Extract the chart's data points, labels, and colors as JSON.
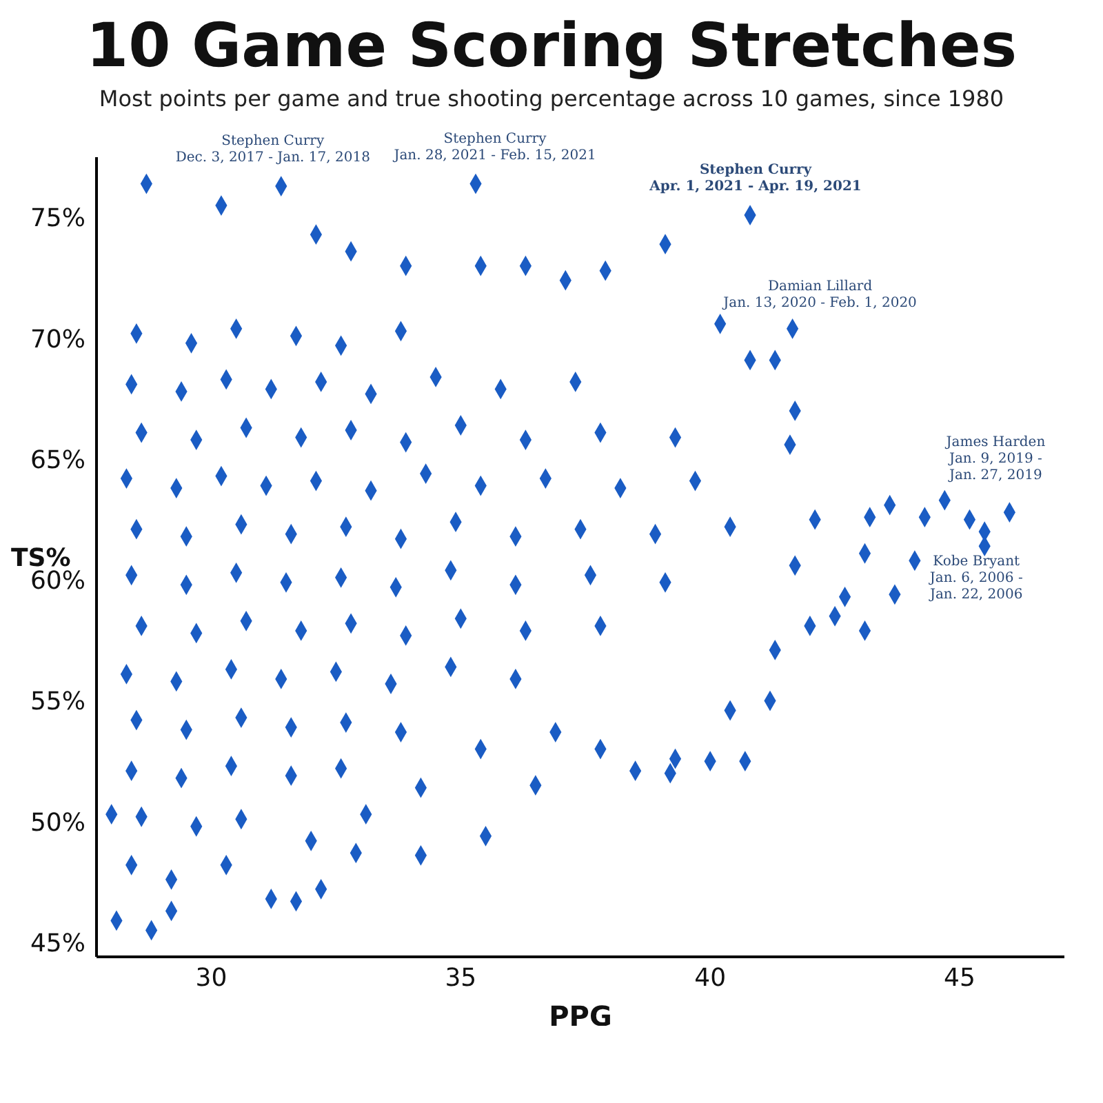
{
  "chart_data": {
    "type": "scatter",
    "title": "10 Game Scoring Stretches",
    "subtitle": "Most points per game and true shooting percentage across 10 games, since 1980",
    "xlabel": "PPG",
    "ylabel": "TS%",
    "marker": "diamond",
    "xlim": [
      27.7,
      47.1
    ],
    "xticks": [
      30,
      35,
      40,
      45
    ],
    "ylim": [
      44.4,
      77.5
    ],
    "yticks": [
      {
        "value": 45,
        "label": "45%"
      },
      {
        "value": 50,
        "label": "50%"
      },
      {
        "value": 55,
        "label": "55%"
      },
      {
        "value": 60,
        "label": "60%"
      },
      {
        "value": 65,
        "label": "65%"
      },
      {
        "value": 70,
        "label": "70%"
      },
      {
        "value": 75,
        "label": "75%"
      }
    ],
    "annotations": [
      {
        "text": "Stephen Curry\nDec. 3, 2017 - Jan. 17, 2018",
        "x": 31.4,
        "y": 76.3
      },
      {
        "text": "Stephen Curry\nJan. 28, 2021 - Feb. 15, 2021",
        "x": 35.3,
        "y": 76.4
      },
      {
        "text": "Stephen Curry\nApr. 1, 2021 - Apr. 19, 2021",
        "x": 40.8,
        "y": 75.1
      },
      {
        "text": "Damian Lillard\nJan. 13, 2020 - Feb. 1, 2020",
        "x": 41.65,
        "y": 70.4
      },
      {
        "text": "James Harden\nJan. 9, 2019 -\nJan. 27, 2019",
        "x": 46.0,
        "y": 62.8
      },
      {
        "text": "Kobe Bryant\nJan. 6, 2006 -\nJan. 22, 2006",
        "x": 45.5,
        "y": 61.4
      }
    ],
    "series": [
      {
        "color": "#1a5cc4",
        "x": [
          31.4,
          35.3,
          40.8,
          41.65,
          46.0,
          45.5,
          44.7,
          44.3,
          43.6,
          43.2,
          45.2,
          45.5,
          44.1,
          43.7,
          43.1,
          43.1,
          42.7,
          42.5,
          42.0,
          41.2,
          40.7,
          40.0,
          39.2,
          39.3,
          40.4,
          41.3,
          41.7,
          42.1,
          41.6,
          41.7,
          41.3,
          40.8,
          40.2,
          39.1,
          37.9,
          37.1,
          36.3,
          35.4,
          33.9,
          32.8,
          32.1,
          30.2,
          28.7,
          28.8,
          29.2,
          28.1,
          31.2,
          31.7,
          32.2,
          32.9,
          34.2,
          35.5,
          36.5,
          38.5,
          37.8,
          36.9,
          35.4,
          34.2,
          33.1,
          32.0,
          30.3,
          29.2,
          28.4,
          28.0,
          28.5,
          29.6,
          30.5,
          31.7,
          32.6,
          33.8,
          28.4,
          29.4,
          30.3,
          31.2,
          32.2,
          33.2,
          34.5,
          35.8,
          37.3,
          28.6,
          29.7,
          30.7,
          31.8,
          32.8,
          33.9,
          35.0,
          36.3,
          37.8,
          39.3,
          28.3,
          29.3,
          30.2,
          31.1,
          32.1,
          33.2,
          34.3,
          35.4,
          36.7,
          38.2,
          39.7,
          28.5,
          29.5,
          30.6,
          31.6,
          32.7,
          33.8,
          34.9,
          36.1,
          37.4,
          38.9,
          40.4,
          28.4,
          29.5,
          30.5,
          31.5,
          32.6,
          33.7,
          34.8,
          36.1,
          37.6,
          39.1,
          28.6,
          29.7,
          30.7,
          31.8,
          32.8,
          33.9,
          35.0,
          36.3,
          37.8,
          28.3,
          29.3,
          30.4,
          31.4,
          32.5,
          33.6,
          34.8,
          36.1,
          28.5,
          29.5,
          30.6,
          31.6,
          32.7,
          33.8,
          28.4,
          29.4,
          30.4,
          31.6,
          32.6,
          28.6,
          29.7,
          30.6
        ],
        "values": [
          76.3,
          76.4,
          75.1,
          70.4,
          62.8,
          61.4,
          63.3,
          62.6,
          63.1,
          62.6,
          62.5,
          62.0,
          60.8,
          59.4,
          61.1,
          57.9,
          59.3,
          58.5,
          58.1,
          55.0,
          52.5,
          52.5,
          52.0,
          52.6,
          54.6,
          57.1,
          60.6,
          62.5,
          65.6,
          67.0,
          69.1,
          69.1,
          70.6,
          73.9,
          72.8,
          72.4,
          73.0,
          73.0,
          73.0,
          73.6,
          74.3,
          75.5,
          76.4,
          45.5,
          46.3,
          45.9,
          46.8,
          46.7,
          47.2,
          48.7,
          48.6,
          49.4,
          51.5,
          52.1,
          53.0,
          53.7,
          53.0,
          51.4,
          50.3,
          49.2,
          48.2,
          47.6,
          48.2,
          50.3,
          70.2,
          69.8,
          70.4,
          70.1,
          69.7,
          70.3,
          68.1,
          67.8,
          68.3,
          67.9,
          68.2,
          67.7,
          68.4,
          67.9,
          68.2,
          66.1,
          65.8,
          66.3,
          65.9,
          66.2,
          65.7,
          66.4,
          65.8,
          66.1,
          65.9,
          64.2,
          63.8,
          64.3,
          63.9,
          64.1,
          63.7,
          64.4,
          63.9,
          64.2,
          63.8,
          64.1,
          62.1,
          61.8,
          62.3,
          61.9,
          62.2,
          61.7,
          62.4,
          61.8,
          62.1,
          61.9,
          62.2,
          60.2,
          59.8,
          60.3,
          59.9,
          60.1,
          59.7,
          60.4,
          59.8,
          60.2,
          59.9,
          58.1,
          57.8,
          58.3,
          57.9,
          58.2,
          57.7,
          58.4,
          57.9,
          58.1,
          56.1,
          55.8,
          56.3,
          55.9,
          56.2,
          55.7,
          56.4,
          55.9,
          54.2,
          53.8,
          54.3,
          53.9,
          54.1,
          53.7,
          52.1,
          51.8,
          52.3,
          51.9,
          52.2,
          50.2,
          49.8,
          50.1
        ]
      }
    ]
  }
}
